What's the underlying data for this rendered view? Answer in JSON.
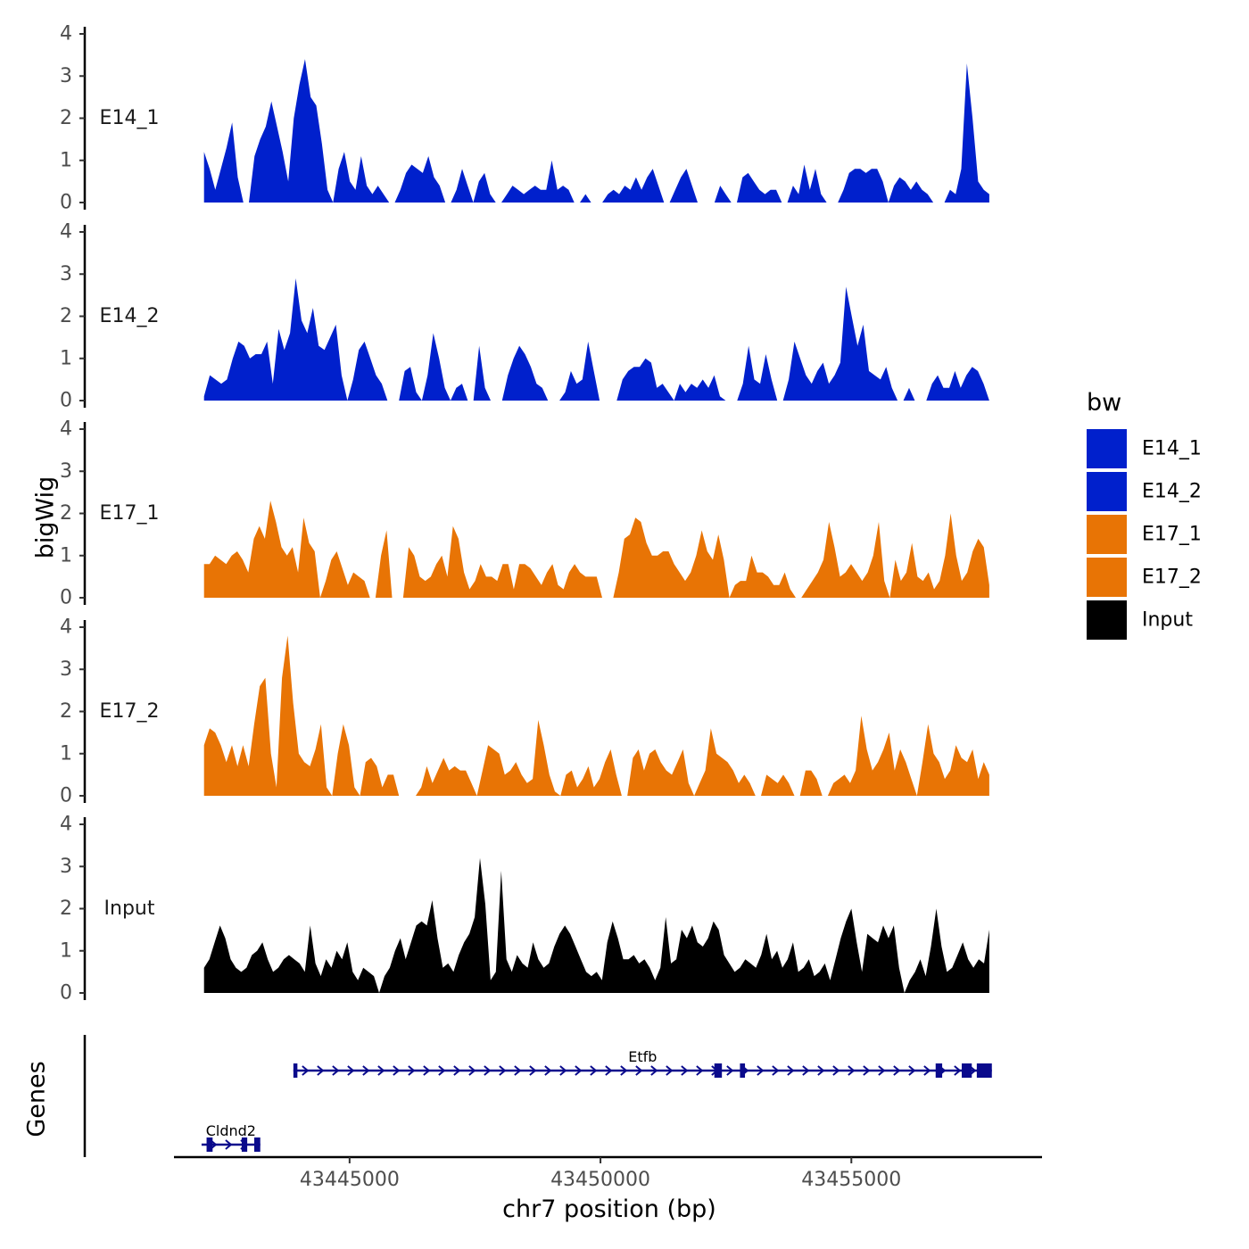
{
  "chart_data": {
    "type": "area",
    "ylabel": "bigWig",
    "genes_label": "Genes",
    "xlabel": "chr7 position (bp)",
    "xlim": [
      43441500,
      43458800
    ],
    "region": [
      43442100,
      43457750
    ],
    "ylim": [
      0,
      4
    ],
    "y_ticks": [
      "0",
      "1",
      "2",
      "3",
      "4"
    ],
    "x_ticks": [
      {
        "value": 43445000,
        "label": "43445000"
      },
      {
        "value": 43450000,
        "label": "43450000"
      },
      {
        "value": 43455000,
        "label": "43455000"
      }
    ],
    "legend": {
      "title": "bw",
      "entries": [
        {
          "name": "E14_1",
          "color": "#0020CC"
        },
        {
          "name": "E14_2",
          "color": "#0020CC"
        },
        {
          "name": "E17_1",
          "color": "#E87405"
        },
        {
          "name": "E17_2",
          "color": "#E87405"
        },
        {
          "name": "Input",
          "color": "#000000"
        }
      ]
    },
    "series": [
      {
        "name": "E14_1",
        "color": "#0020CC",
        "values": [
          1.2,
          0.8,
          0.3,
          0.8,
          1.3,
          1.9,
          0.6,
          0.0,
          0.0,
          1.1,
          1.5,
          1.8,
          2.4,
          1.8,
          1.2,
          0.5,
          2.0,
          2.8,
          3.4,
          2.5,
          2.3,
          1.4,
          0.3,
          0.0,
          0.8,
          1.2,
          0.5,
          0.3,
          1.1,
          0.4,
          0.2,
          0.4,
          0.2,
          0.0,
          0.0,
          0.3,
          0.7,
          0.9,
          0.8,
          0.7,
          1.1,
          0.6,
          0.4,
          0.0,
          0.0,
          0.3,
          0.8,
          0.4,
          0.0,
          0.5,
          0.7,
          0.2,
          0.0,
          0.0,
          0.2,
          0.4,
          0.3,
          0.2,
          0.3,
          0.4,
          0.3,
          0.3,
          1.0,
          0.3,
          0.4,
          0.3,
          0.0,
          0.0,
          0.2,
          0.0,
          0.0,
          0.0,
          0.2,
          0.3,
          0.2,
          0.4,
          0.3,
          0.6,
          0.3,
          0.6,
          0.8,
          0.4,
          0.0,
          0.0,
          0.3,
          0.6,
          0.8,
          0.4,
          0.0,
          0.0,
          0.0,
          0.0,
          0.4,
          0.2,
          0.0,
          0.0,
          0.6,
          0.7,
          0.5,
          0.3,
          0.2,
          0.3,
          0.3,
          0.0,
          0.0,
          0.4,
          0.2,
          0.9,
          0.3,
          0.8,
          0.2,
          0.0,
          0.0,
          0.0,
          0.3,
          0.7,
          0.8,
          0.8,
          0.7,
          0.8,
          0.8,
          0.5,
          0.0,
          0.4,
          0.6,
          0.5,
          0.3,
          0.5,
          0.3,
          0.2,
          0.0,
          0.0,
          0.0,
          0.3,
          0.2,
          0.8,
          3.3,
          2.0,
          0.5,
          0.3,
          0.2
        ]
      },
      {
        "name": "E14_2",
        "color": "#0020CC",
        "values": [
          0.1,
          0.6,
          0.5,
          0.4,
          0.5,
          1.0,
          1.4,
          1.3,
          1.0,
          1.1,
          1.1,
          1.4,
          0.4,
          1.7,
          1.2,
          1.6,
          2.9,
          1.9,
          1.6,
          2.2,
          1.3,
          1.2,
          1.5,
          1.8,
          0.6,
          0.0,
          0.5,
          1.2,
          1.4,
          1.0,
          0.6,
          0.4,
          0.0,
          0.0,
          0.0,
          0.7,
          0.8,
          0.2,
          0.0,
          0.6,
          1.6,
          1.0,
          0.3,
          0.0,
          0.3,
          0.4,
          0.0,
          0.0,
          1.3,
          0.3,
          0.0,
          0.0,
          0.0,
          0.6,
          1.0,
          1.3,
          1.1,
          0.8,
          0.4,
          0.3,
          0.0,
          0.0,
          0.0,
          0.2,
          0.7,
          0.4,
          0.5,
          1.4,
          0.7,
          0.0,
          0.0,
          0.0,
          0.0,
          0.5,
          0.7,
          0.8,
          0.8,
          1.0,
          0.9,
          0.3,
          0.4,
          0.2,
          0.0,
          0.4,
          0.2,
          0.4,
          0.3,
          0.5,
          0.3,
          0.6,
          0.1,
          0.0,
          0.0,
          0.0,
          0.4,
          1.3,
          0.5,
          0.4,
          1.1,
          0.5,
          0.0,
          0.0,
          0.5,
          1.4,
          1.0,
          0.6,
          0.4,
          0.7,
          0.9,
          0.4,
          0.6,
          0.9,
          2.7,
          2.0,
          1.3,
          1.8,
          0.7,
          0.6,
          0.5,
          0.8,
          0.3,
          0.0,
          0.0,
          0.3,
          0.0,
          0.0,
          0.0,
          0.4,
          0.6,
          0.3,
          0.3,
          0.7,
          0.3,
          0.6,
          0.8,
          0.7,
          0.4,
          0.0
        ]
      },
      {
        "name": "E17_1",
        "color": "#E87405",
        "values": [
          0.8,
          0.8,
          1.0,
          0.9,
          0.8,
          1.0,
          1.1,
          0.9,
          0.6,
          1.4,
          1.7,
          1.4,
          2.3,
          1.8,
          1.2,
          1.0,
          1.2,
          0.6,
          1.9,
          1.3,
          1.1,
          0.0,
          0.4,
          0.9,
          1.1,
          0.7,
          0.3,
          0.6,
          0.5,
          0.4,
          0.0,
          0.0,
          1.0,
          1.6,
          0.0,
          0.0,
          0.0,
          1.2,
          1.0,
          0.5,
          0.4,
          0.5,
          0.8,
          1.0,
          0.5,
          1.7,
          1.4,
          0.6,
          0.2,
          0.4,
          0.8,
          0.5,
          0.5,
          0.4,
          0.8,
          0.8,
          0.2,
          0.8,
          0.8,
          0.7,
          0.5,
          0.3,
          0.6,
          0.8,
          0.3,
          0.2,
          0.6,
          0.8,
          0.6,
          0.5,
          0.5,
          0.5,
          0.0,
          0.0,
          0.0,
          0.6,
          1.4,
          1.5,
          1.9,
          1.8,
          1.3,
          1.0,
          1.0,
          1.1,
          1.1,
          0.8,
          0.6,
          0.4,
          0.6,
          1.0,
          1.6,
          1.1,
          0.9,
          1.5,
          0.9,
          0.0,
          0.3,
          0.4,
          0.4,
          1.0,
          0.6,
          0.6,
          0.5,
          0.3,
          0.3,
          0.6,
          0.2,
          0.0,
          0.0,
          0.2,
          0.4,
          0.6,
          0.9,
          1.8,
          1.2,
          0.5,
          0.6,
          0.8,
          0.6,
          0.4,
          0.6,
          1.0,
          1.8,
          0.4,
          0.0,
          0.9,
          0.4,
          0.6,
          1.3,
          0.5,
          0.4,
          0.6,
          0.2,
          0.4,
          1.0,
          2.0,
          1.0,
          0.4,
          0.6,
          1.1,
          1.4,
          1.2,
          0.3
        ]
      },
      {
        "name": "E17_2",
        "color": "#E87405",
        "values": [
          1.2,
          1.6,
          1.5,
          1.2,
          0.8,
          1.2,
          0.7,
          1.2,
          0.7,
          1.7,
          2.6,
          2.8,
          1.0,
          0.2,
          2.8,
          3.8,
          2.2,
          1.0,
          0.8,
          0.7,
          1.1,
          1.7,
          0.2,
          0.0,
          1.0,
          1.7,
          1.2,
          0.2,
          0.0,
          0.8,
          0.9,
          0.7,
          0.2,
          0.5,
          0.5,
          0.0,
          0.0,
          0.0,
          0.0,
          0.2,
          0.7,
          0.3,
          0.6,
          0.9,
          0.6,
          0.7,
          0.6,
          0.6,
          0.3,
          0.0,
          0.6,
          1.2,
          1.1,
          1.0,
          0.5,
          0.6,
          0.8,
          0.5,
          0.3,
          0.4,
          1.8,
          1.2,
          0.5,
          0.1,
          0.0,
          0.5,
          0.6,
          0.2,
          0.4,
          0.7,
          0.2,
          0.4,
          0.8,
          1.1,
          0.5,
          0.0,
          0.0,
          0.9,
          1.1,
          0.6,
          1.0,
          1.1,
          0.8,
          0.6,
          0.5,
          0.8,
          1.1,
          0.3,
          0.0,
          0.3,
          0.6,
          1.6,
          1.0,
          0.9,
          0.8,
          0.6,
          0.3,
          0.5,
          0.3,
          0.0,
          0.0,
          0.5,
          0.4,
          0.3,
          0.5,
          0.3,
          0.0,
          0.0,
          0.6,
          0.6,
          0.4,
          0.0,
          0.0,
          0.3,
          0.4,
          0.5,
          0.3,
          0.6,
          1.9,
          1.1,
          0.6,
          0.8,
          1.1,
          1.5,
          0.6,
          1.1,
          0.8,
          0.4,
          0.0,
          0.8,
          1.7,
          1.0,
          0.8,
          0.4,
          0.6,
          1.2,
          0.9,
          0.8,
          1.1,
          0.4,
          0.8,
          0.5
        ]
      },
      {
        "name": "Input",
        "color": "#000000",
        "values": [
          0.6,
          0.8,
          1.2,
          1.6,
          1.3,
          0.8,
          0.6,
          0.5,
          0.6,
          0.9,
          1.0,
          1.2,
          0.8,
          0.5,
          0.6,
          0.8,
          0.9,
          0.8,
          0.7,
          0.5,
          1.6,
          0.7,
          0.4,
          0.8,
          0.6,
          1.0,
          0.8,
          1.2,
          0.5,
          0.3,
          0.6,
          0.5,
          0.4,
          0.0,
          0.4,
          0.6,
          1.0,
          1.3,
          0.8,
          1.2,
          1.6,
          1.7,
          1.6,
          2.2,
          1.3,
          0.6,
          0.7,
          0.5,
          0.9,
          1.2,
          1.4,
          1.8,
          3.2,
          2.1,
          0.3,
          0.5,
          2.9,
          0.8,
          0.5,
          0.9,
          0.7,
          0.6,
          1.2,
          0.8,
          0.6,
          0.7,
          1.1,
          1.4,
          1.6,
          1.4,
          1.1,
          0.8,
          0.5,
          0.4,
          0.5,
          0.3,
          1.2,
          1.7,
          1.3,
          0.8,
          0.8,
          0.9,
          0.7,
          0.8,
          0.6,
          0.3,
          0.6,
          1.8,
          0.7,
          0.8,
          1.5,
          1.3,
          1.6,
          1.2,
          1.1,
          1.3,
          1.7,
          1.5,
          0.9,
          0.7,
          0.5,
          0.6,
          0.8,
          0.7,
          0.6,
          0.9,
          1.4,
          0.8,
          1.0,
          0.6,
          0.8,
          1.2,
          0.5,
          0.6,
          0.8,
          0.4,
          0.5,
          0.7,
          0.3,
          0.8,
          1.3,
          1.7,
          2.0,
          1.2,
          0.5,
          1.4,
          1.3,
          1.2,
          1.6,
          1.3,
          1.6,
          0.6,
          0.0,
          0.3,
          0.5,
          0.8,
          0.4,
          1.1,
          2.0,
          1.1,
          0.5,
          0.6,
          0.9,
          1.2,
          0.8,
          0.6,
          0.8,
          0.7,
          1.5
        ]
      }
    ],
    "genes": [
      {
        "name": "Cldnd2",
        "strand": "+",
        "start": 43442050,
        "end": 43443220,
        "exons": [
          [
            43442150,
            43442270
          ],
          [
            43442850,
            43442960
          ],
          [
            43443100,
            43443220
          ]
        ]
      },
      {
        "name": "Etfb",
        "strand": "+",
        "start": 43443880,
        "end": 43457800,
        "exons": [
          [
            43443880,
            43443960
          ],
          [
            43452270,
            43452420
          ],
          [
            43452780,
            43452880
          ],
          [
            43456680,
            43456810
          ],
          [
            43457200,
            43457400
          ],
          [
            43457500,
            43457800
          ]
        ]
      }
    ]
  }
}
